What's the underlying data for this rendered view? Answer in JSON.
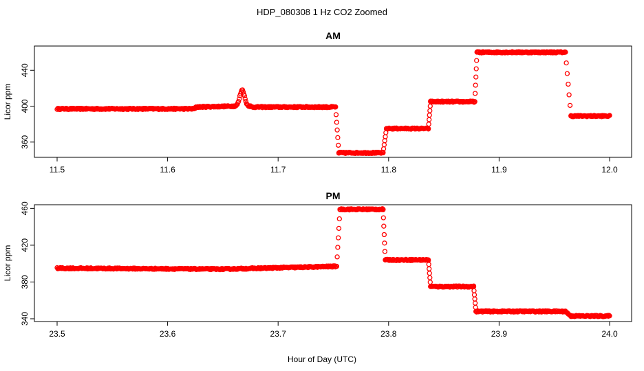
{
  "chart_data": {
    "type": "scatter",
    "title": "HDP_080308  1 Hz CO2 Zoomed",
    "xlabel": "Hour of Day (UTC)",
    "point_color": "#ff0000",
    "panels": [
      {
        "title": "AM",
        "ylabel": "Licor ppm",
        "xlim": [
          11.5,
          12.0
        ],
        "ylim": [
          343,
          467
        ],
        "x_ticks": [
          "11.5",
          "11.6",
          "11.7",
          "11.8",
          "11.9",
          "12.0"
        ],
        "y_ticks": [
          "360",
          "400",
          "440"
        ],
        "segments": [
          {
            "x": [
              11.5,
              11.625
            ],
            "y": [
              397,
              397
            ]
          },
          {
            "x": [
              11.625,
              11.66
            ],
            "y": [
              399,
              400
            ]
          },
          {
            "x": [
              11.66,
              11.675
            ],
            "y": [
              400,
              400
            ],
            "peak": 418
          },
          {
            "x": [
              11.675,
              11.752
            ],
            "y": [
              399,
              399
            ]
          },
          {
            "x": [
              11.752,
              11.755
            ],
            "y": [
              399,
              348
            ]
          },
          {
            "x": [
              11.755,
              11.795
            ],
            "y": [
              348,
              348
            ]
          },
          {
            "x": [
              11.795,
              11.798
            ],
            "y": [
              348,
              375
            ]
          },
          {
            "x": [
              11.798,
              11.836
            ],
            "y": [
              375,
              375
            ]
          },
          {
            "x": [
              11.836,
              11.838
            ],
            "y": [
              375,
              405
            ]
          },
          {
            "x": [
              11.838,
              11.878
            ],
            "y": [
              405,
              405
            ]
          },
          {
            "x": [
              11.878,
              11.88
            ],
            "y": [
              405,
              460
            ]
          },
          {
            "x": [
              11.88,
              11.96
            ],
            "y": [
              460,
              460
            ]
          },
          {
            "x": [
              11.96,
              11.965
            ],
            "y": [
              460,
              389
            ]
          },
          {
            "x": [
              11.965,
              12.0
            ],
            "y": [
              389,
              389
            ]
          }
        ]
      },
      {
        "title": "PM",
        "ylabel": "Licor ppm",
        "xlim": [
          23.5,
          24.0
        ],
        "ylim": [
          337,
          464
        ],
        "x_ticks": [
          "23.5",
          "23.6",
          "23.7",
          "23.8",
          "23.9",
          "24.0"
        ],
        "y_ticks": [
          "340",
          "380",
          "420",
          "460"
        ],
        "segments": [
          {
            "x": [
              23.5,
              23.65
            ],
            "y": [
              395,
              394
            ]
          },
          {
            "x": [
              23.65,
              23.72
            ],
            "y": [
              394,
              396
            ]
          },
          {
            "x": [
              23.72,
              23.753
            ],
            "y": [
              396,
              397
            ]
          },
          {
            "x": [
              23.753,
              23.756
            ],
            "y": [
              397,
              459
            ]
          },
          {
            "x": [
              23.756,
              23.795
            ],
            "y": [
              459,
              459
            ]
          },
          {
            "x": [
              23.795,
              23.797
            ],
            "y": [
              459,
              404
            ]
          },
          {
            "x": [
              23.797,
              23.836
            ],
            "y": [
              404,
              404
            ]
          },
          {
            "x": [
              23.836,
              23.838
            ],
            "y": [
              404,
              375
            ]
          },
          {
            "x": [
              23.838,
              23.877
            ],
            "y": [
              375,
              375
            ]
          },
          {
            "x": [
              23.877,
              23.879
            ],
            "y": [
              375,
              348
            ]
          },
          {
            "x": [
              23.879,
              23.96
            ],
            "y": [
              348,
              348
            ]
          },
          {
            "x": [
              23.96,
              23.965
            ],
            "y": [
              348,
              343
            ]
          },
          {
            "x": [
              23.965,
              24.0
            ],
            "y": [
              343,
              343
            ]
          }
        ]
      }
    ]
  }
}
